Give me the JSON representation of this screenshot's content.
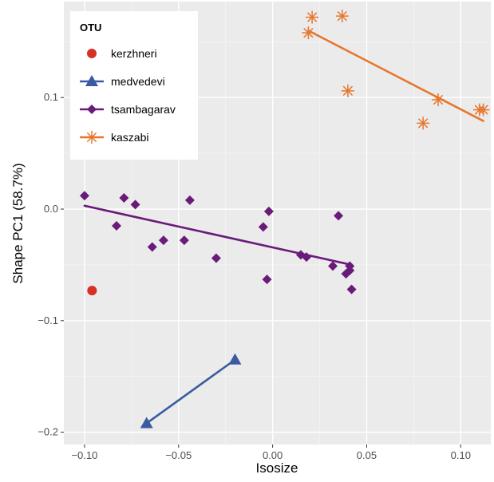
{
  "chart_data": {
    "type": "scatter",
    "xlabel": "Isosize",
    "ylabel": "Shape PC1 (58.7%)",
    "xlim": [
      -0.111,
      0.116
    ],
    "ylim": [
      -0.211,
      0.186
    ],
    "x_ticks": [
      -0.1,
      -0.05,
      0.0,
      0.05,
      0.1
    ],
    "x_tick_labels": [
      "−0.10",
      "−0.05",
      "0.00",
      "0.05",
      "0.10"
    ],
    "y_ticks": [
      -0.2,
      -0.1,
      0.0,
      0.1
    ],
    "y_tick_labels": [
      "−0.2",
      "−0.1",
      "0.0",
      "0.1"
    ],
    "grid": true,
    "legend": {
      "title": "OTU",
      "position": "top-left"
    },
    "series": [
      {
        "name": "kerzhneri",
        "color": "#d73027",
        "marker": "circle",
        "points": [
          [
            -0.096,
            -0.073
          ]
        ],
        "line": null
      },
      {
        "name": "medvedevi",
        "color": "#3a5ba0",
        "marker": "triangle",
        "points": [
          [
            -0.067,
            -0.192
          ],
          [
            -0.02,
            -0.135
          ]
        ],
        "line": [
          [
            -0.067,
            -0.192
          ],
          [
            -0.02,
            -0.135
          ]
        ]
      },
      {
        "name": "tsambagarav",
        "color": "#6a1b7a",
        "marker": "diamond",
        "points": [
          [
            -0.1,
            0.012
          ],
          [
            -0.083,
            -0.015
          ],
          [
            -0.079,
            0.01
          ],
          [
            -0.073,
            0.004
          ],
          [
            -0.064,
            -0.034
          ],
          [
            -0.058,
            -0.028
          ],
          [
            -0.047,
            -0.028
          ],
          [
            -0.044,
            0.008
          ],
          [
            -0.03,
            -0.044
          ],
          [
            -0.005,
            -0.016
          ],
          [
            -0.003,
            -0.063
          ],
          [
            -0.002,
            -0.002
          ],
          [
            0.015,
            -0.041
          ],
          [
            0.018,
            -0.043
          ],
          [
            0.032,
            -0.051
          ],
          [
            0.035,
            -0.006
          ],
          [
            0.039,
            -0.058
          ],
          [
            0.041,
            -0.051
          ],
          [
            0.041,
            -0.055
          ],
          [
            0.042,
            -0.072
          ]
        ],
        "line": [
          [
            -0.1,
            0.003
          ],
          [
            0.042,
            -0.05
          ]
        ]
      },
      {
        "name": "kaszabi",
        "color": "#e6772e",
        "marker": "star",
        "points": [
          [
            0.019,
            0.158
          ],
          [
            0.021,
            0.172
          ],
          [
            0.037,
            0.173
          ],
          [
            0.04,
            0.106
          ],
          [
            0.08,
            0.077
          ],
          [
            0.088,
            0.098
          ],
          [
            0.11,
            0.089
          ],
          [
            0.112,
            0.089
          ]
        ],
        "line": [
          [
            0.019,
            0.16
          ],
          [
            0.112,
            0.079
          ]
        ]
      }
    ]
  }
}
